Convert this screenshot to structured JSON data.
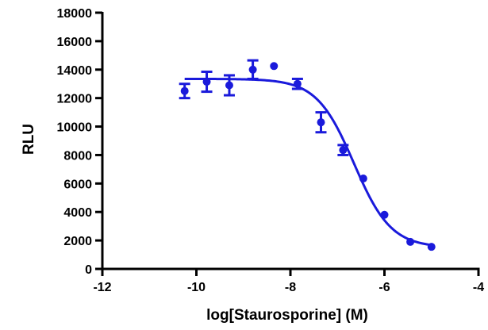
{
  "chart_data": {
    "type": "scatter",
    "title": "",
    "xlabel": "log[Staurosporine] (M)",
    "ylabel": "RLU",
    "xlim": [
      -12,
      -4
    ],
    "ylim": [
      0,
      18000
    ],
    "x_ticks": [
      -12,
      -10,
      -8,
      -6,
      -4
    ],
    "y_ticks": [
      0,
      2000,
      4000,
      6000,
      8000,
      10000,
      12000,
      14000,
      16000,
      18000
    ],
    "x_tick_labels": [
      "-12",
      "-10",
      "-8",
      "-6",
      "-4"
    ],
    "y_tick_labels": [
      "0",
      "2000",
      "4000",
      "6000",
      "8000",
      "10000",
      "12000",
      "14000",
      "16000",
      "18000"
    ],
    "color": "#1a1adb",
    "grid": false,
    "legend": "none",
    "series": [
      {
        "points": [
          {
            "x": -10.25,
            "y": 12500,
            "err": 500
          },
          {
            "x": -9.78,
            "y": 13150,
            "err": 700
          },
          {
            "x": -9.3,
            "y": 12900,
            "err": 700
          },
          {
            "x": -8.8,
            "y": 14000,
            "err": 650
          },
          {
            "x": -8.35,
            "y": 14250,
            "err": 0
          },
          {
            "x": -7.85,
            "y": 13000,
            "err": 350
          },
          {
            "x": -7.35,
            "y": 10300,
            "err": 700
          },
          {
            "x": -6.88,
            "y": 8350,
            "err": 350
          },
          {
            "x": -6.45,
            "y": 6350,
            "err": 0
          },
          {
            "x": -6.0,
            "y": 3800,
            "err": 0
          },
          {
            "x": -5.45,
            "y": 1900,
            "err": 0
          },
          {
            "x": -5.0,
            "y": 1550,
            "err": 0
          }
        ]
      }
    ],
    "fit_curve": {
      "model": "four-parameter logistic",
      "top": 13350,
      "bottom": 1500,
      "log_ic50": -6.65,
      "hill_slope": -1.1,
      "x_from": -10.25,
      "x_to": -5.0
    }
  }
}
